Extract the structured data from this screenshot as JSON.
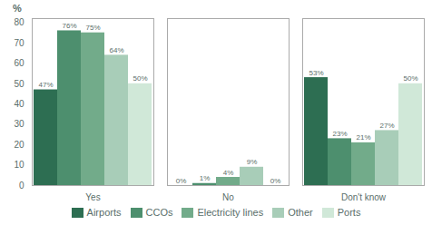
{
  "chart_data": {
    "type": "bar",
    "categories": [
      "Yes",
      "No",
      "Don't know"
    ],
    "series": [
      {
        "name": "Airports",
        "color": "#2d6e52",
        "values": [
          47,
          0,
          53
        ],
        "value_labels": [
          "47%",
          "0%",
          "53%"
        ]
      },
      {
        "name": "CCOs",
        "color": "#4d8f6e",
        "values": [
          76,
          1,
          23
        ],
        "value_labels": [
          "76%",
          "1%",
          "23%"
        ]
      },
      {
        "name": "Electricity lines",
        "color": "#72ab8a",
        "values": [
          75,
          4,
          21
        ],
        "value_labels": [
          "75%",
          "4%",
          "21%"
        ]
      },
      {
        "name": "Other",
        "color": "#a8cdb8",
        "values": [
          64,
          9,
          27
        ],
        "value_labels": [
          "64%",
          "9%",
          "27%"
        ]
      },
      {
        "name": "Ports",
        "color": "#d0e8d8",
        "values": [
          50,
          0,
          50
        ],
        "value_labels": [
          "50%",
          "0%",
          "50%"
        ]
      }
    ],
    "ylabel": "%",
    "ylim": [
      0,
      82
    ],
    "yticks": [
      0,
      10,
      20,
      30,
      40,
      50,
      60,
      70,
      80
    ],
    "grid": false,
    "legend": "bottom",
    "data_labels": true
  }
}
